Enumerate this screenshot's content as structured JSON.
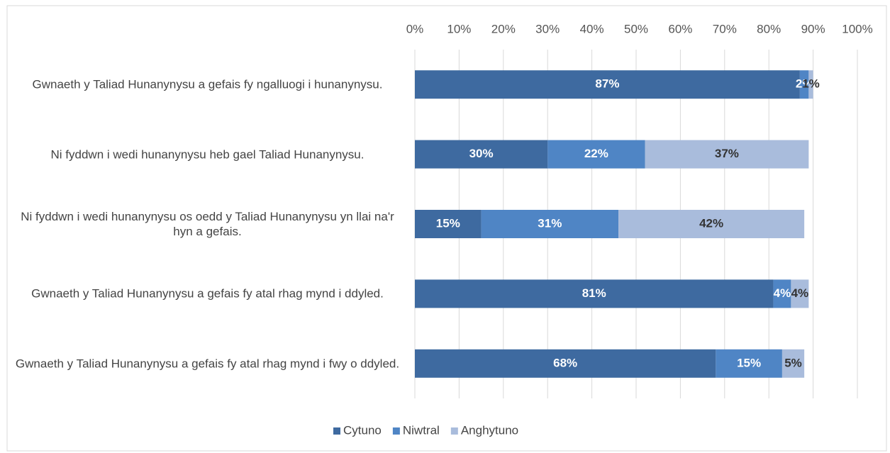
{
  "chart_data": {
    "type": "stacked_barh",
    "categories": [
      "Gwnaeth y Taliad Hunanynysu a gefais fy ngalluogi i hunanynysu.",
      "Ni fyddwn i wedi hunanynysu heb gael Taliad Hunanynysu.",
      "Ni fyddwn i wedi hunanynysu os oedd y Taliad Hunanynysu yn llai na'r hyn a gefais.",
      "Gwnaeth y Taliad Hunanynysu a gefais fy atal rhag mynd i ddyled.",
      "Gwnaeth y Taliad Hunanynysu a gefais fy atal rhag mynd i fwy o ddyled."
    ],
    "series": [
      {
        "name": "Cytuno",
        "color": "#3e6aa0",
        "values": [
          87,
          30,
          15,
          81,
          68
        ],
        "value_labels": [
          "87%",
          "30%",
          "15%",
          "81%",
          "68%"
        ]
      },
      {
        "name": "Niwtral",
        "color": "#4f85c5",
        "values": [
          2,
          22,
          31,
          4,
          15
        ],
        "value_labels": [
          "2%",
          "22%",
          "31%",
          "4%",
          "15%"
        ]
      },
      {
        "name": "Anghytuno",
        "color": "#a9bcdc",
        "values": [
          1,
          37,
          42,
          4,
          5
        ],
        "value_labels": [
          "1%",
          "37%",
          "42%",
          "4%",
          "5%"
        ]
      }
    ],
    "xlim": [
      0,
      100
    ],
    "xticks": [
      {
        "value": 0,
        "label": "0%"
      },
      {
        "value": 10,
        "label": "10%"
      },
      {
        "value": 20,
        "label": "20%"
      },
      {
        "value": 30,
        "label": "30%"
      },
      {
        "value": 40,
        "label": "40%"
      },
      {
        "value": 50,
        "label": "50%"
      },
      {
        "value": 60,
        "label": "60%"
      },
      {
        "value": 70,
        "label": "70%"
      },
      {
        "value": 80,
        "label": "80%"
      },
      {
        "value": 90,
        "label": "90%"
      },
      {
        "value": 100,
        "label": "100%"
      }
    ],
    "grid": true,
    "legend": "bottom"
  }
}
